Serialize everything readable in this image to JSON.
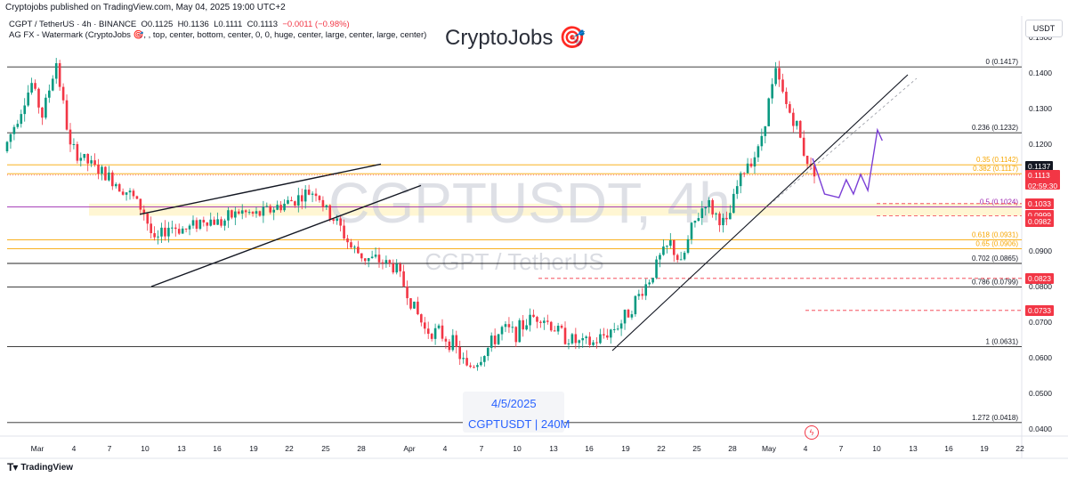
{
  "header": {
    "published": "Cryptojobs published on TradingView.com, May 04, 2025 19:00 UTC+2",
    "symbol_line": "CGPT / TetherUS · 4h · BINANCE",
    "ohlc": {
      "o": "O0.1125",
      "h": "H0.1136",
      "l": "L0.1111",
      "c": "C0.1113",
      "chg": "−0.0011 (−0.98%)"
    },
    "indicator": "AG FX - Watermark (CryptoJobs 🎯, , top, center, bottom, center, 0, 0, huge, center, large, center, large, center)"
  },
  "brand": {
    "title": "CryptoJobs",
    "icon": "target-icon"
  },
  "watermark": {
    "big": "CGPTUSDT, 4h",
    "small": "CGPT / TetherUS"
  },
  "footer_box": {
    "date": "4/5/2025",
    "symbol": "CGPTUSDT | 240M"
  },
  "currency": "USDT",
  "branding": {
    "tv": "TradingView"
  },
  "colors": {
    "up": "#089981",
    "down": "#f23645",
    "fib_orange": "#f7a600",
    "projection": "#7b3fd6",
    "fib_purple": "#9c27b0",
    "red_level": "#f23645"
  },
  "current_price": {
    "price": "0.1113",
    "countdown": "02:59:30",
    "prev_tag": "0.1137"
  },
  "price_tags": [
    {
      "value": "0.1033",
      "color": "#f23645"
    },
    {
      "value": "0.0999",
      "color": "#f23645"
    },
    {
      "value": "0.0982",
      "color": "#f23645"
    },
    {
      "value": "0.0823",
      "color": "#f23645"
    },
    {
      "value": "0.0733",
      "color": "#f23645"
    }
  ],
  "chart_data": {
    "type": "candlestick",
    "timeframe": "4h",
    "ylim": [
      0.038,
      0.156
    ],
    "y_ticks": [
      "0.1500",
      "0.1400",
      "0.1300",
      "0.1200",
      "0.1100",
      "0.1000",
      "0.0900",
      "0.0800",
      "0.0700",
      "0.0600",
      "0.0500",
      "0.0400"
    ],
    "x_ticks": [
      "Mar",
      "4",
      "7",
      "10",
      "13",
      "16",
      "19",
      "22",
      "25",
      "28",
      "Apr",
      "4",
      "7",
      "10",
      "13",
      "16",
      "19",
      "22",
      "25",
      "28",
      "May",
      "4",
      "7",
      "10",
      "13",
      "16",
      "19",
      "22"
    ],
    "fib_levels": [
      {
        "label": "0 (0.1417)",
        "price": 0.1417,
        "color": "#000000"
      },
      {
        "label": "0.236 (0.1232)",
        "price": 0.1232,
        "color": "#000000"
      },
      {
        "label": "0.35 (0.1142)",
        "price": 0.1142,
        "color": "#f7a600"
      },
      {
        "label": "0.382 (0.1117)",
        "price": 0.1117,
        "color": "#f7a600"
      },
      {
        "label": "0.5 (0.1024)",
        "price": 0.1024,
        "color": "#9c27b0"
      },
      {
        "label": "0.618 (0.0931)",
        "price": 0.0931,
        "color": "#f7a600"
      },
      {
        "label": "0.65 (0.0906)",
        "price": 0.0906,
        "color": "#f7a600"
      },
      {
        "label": "0.702 (0.0865)",
        "price": 0.0865,
        "color": "#000000"
      },
      {
        "label": "0.786 (0.0799)",
        "price": 0.0799,
        "color": "#000000"
      },
      {
        "label": "1 (0.0631)",
        "price": 0.0631,
        "color": "#000000"
      },
      {
        "label": "1.272 (0.0418)",
        "price": 0.0418,
        "color": "#000000"
      }
    ],
    "key_points": [
      [
        0,
        0.118
      ],
      [
        10,
        0.13
      ],
      [
        16,
        0.137
      ],
      [
        22,
        0.128
      ],
      [
        30,
        0.143
      ],
      [
        38,
        0.119
      ],
      [
        50,
        0.114
      ],
      [
        62,
        0.11
      ],
      [
        72,
        0.106
      ],
      [
        80,
        0.101
      ],
      [
        86,
        0.092
      ],
      [
        94,
        0.097
      ],
      [
        104,
        0.096
      ],
      [
        114,
        0.099
      ],
      [
        124,
        0.098
      ],
      [
        134,
        0.101
      ],
      [
        144,
        0.1
      ],
      [
        154,
        0.102
      ],
      [
        164,
        0.104
      ],
      [
        172,
        0.106
      ],
      [
        178,
        0.107
      ],
      [
        184,
        0.101
      ],
      [
        190,
        0.098
      ],
      [
        198,
        0.091
      ],
      [
        206,
        0.088
      ],
      [
        216,
        0.087
      ],
      [
        224,
        0.085
      ],
      [
        232,
        0.076
      ],
      [
        240,
        0.068
      ],
      [
        248,
        0.067
      ],
      [
        256,
        0.064
      ],
      [
        264,
        0.057
      ],
      [
        270,
        0.059
      ],
      [
        278,
        0.064
      ],
      [
        284,
        0.068
      ],
      [
        292,
        0.067
      ],
      [
        300,
        0.071
      ],
      [
        306,
        0.072
      ],
      [
        312,
        0.069
      ],
      [
        320,
        0.066
      ],
      [
        328,
        0.064
      ],
      [
        336,
        0.064
      ],
      [
        344,
        0.067
      ],
      [
        352,
        0.07
      ],
      [
        360,
        0.076
      ],
      [
        368,
        0.082
      ],
      [
        374,
        0.088
      ],
      [
        380,
        0.092
      ],
      [
        386,
        0.086
      ],
      [
        392,
        0.096
      ],
      [
        400,
        0.104
      ],
      [
        406,
        0.1
      ],
      [
        412,
        0.097
      ],
      [
        418,
        0.108
      ],
      [
        424,
        0.115
      ],
      [
        430,
        0.118
      ],
      [
        436,
        0.132
      ],
      [
        440,
        0.14
      ],
      [
        446,
        0.131
      ],
      [
        452,
        0.125
      ],
      [
        456,
        0.118
      ],
      [
        460,
        0.113
      ]
    ],
    "projection": [
      [
        0.116,
        0
      ],
      [
        0.106,
        10
      ],
      [
        0.105,
        22
      ],
      [
        0.11,
        28
      ],
      [
        0.106,
        34
      ],
      [
        0.1115,
        40
      ],
      [
        0.107,
        46
      ],
      [
        0.124,
        54
      ],
      [
        0.121,
        58
      ]
    ],
    "title": "CGPTUSDT, 4h",
    "xlabel": "",
    "ylabel": ""
  }
}
